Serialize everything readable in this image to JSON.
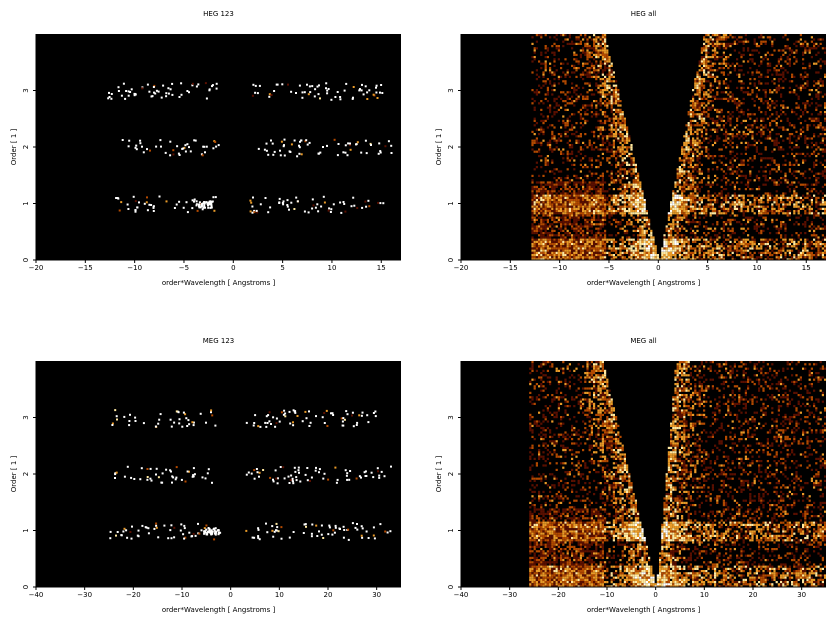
{
  "chart_data": [
    {
      "type": "heatmap",
      "title": "HEG 123",
      "xlabel": "order*Wavelength [ Angstroms ]",
      "ylabel": "Order [ 1 ]",
      "xlim": [
        -20,
        17
      ],
      "ylim": [
        0,
        4
      ],
      "xticks": [
        -20,
        -15,
        -10,
        -5,
        0,
        5,
        10,
        15
      ],
      "yticks": [
        0,
        1,
        2,
        3
      ],
      "colormap": [
        "#000000",
        "#5a0f00",
        "#b34a00",
        "#e89a28",
        "#ffe8a0",
        "#ffffff"
      ],
      "bands": [
        {
          "order": 1,
          "x_range": [
            -12,
            15.5
          ],
          "peak_x": [
            -3
          ],
          "density": "sparse"
        },
        {
          "order": 2,
          "x_range": [
            -12,
            16
          ],
          "density": "sparse"
        },
        {
          "order": 3,
          "x_range": [
            -13,
            15
          ],
          "density": "sparse"
        }
      ]
    },
    {
      "type": "heatmap",
      "title": "HEG all",
      "xlabel": "order*Wavelength [ Angstroms ]",
      "ylabel": "Order [ 1 ]",
      "xlim": [
        -20,
        17
      ],
      "ylim": [
        0,
        4
      ],
      "xticks": [
        -20,
        -15,
        -10,
        -5,
        0,
        5,
        10,
        15
      ],
      "yticks": [
        0,
        1,
        2,
        3
      ],
      "colormap": [
        "#000000",
        "#5a0f00",
        "#b34a00",
        "#e89a28",
        "#ffe8a0",
        "#ffffff"
      ],
      "data_x_range": [
        -13,
        17
      ],
      "cone_gap_x_at_top": [
        -5.5,
        4.5
      ],
      "bright_rows": [
        0.2,
        1.0
      ]
    },
    {
      "type": "heatmap",
      "title": "MEG 123",
      "xlabel": "order*Wavelength [ Angstroms ]",
      "ylabel": "Order [ 1 ]",
      "xlim": [
        -40,
        35
      ],
      "ylim": [
        0,
        4
      ],
      "xticks": [
        -40,
        -30,
        -20,
        -10,
        0,
        10,
        20,
        30
      ],
      "yticks": [
        0,
        1,
        2,
        3
      ],
      "colormap": [
        "#000000",
        "#5a0f00",
        "#b34a00",
        "#e89a28",
        "#ffe8a0",
        "#ffffff"
      ],
      "bands": [
        {
          "order": 1,
          "x_range": [
            -25,
            33
          ],
          "peak_x": [
            -4
          ],
          "density": "sparse"
        },
        {
          "order": 2,
          "x_range": [
            -24,
            33
          ],
          "density": "sparse"
        },
        {
          "order": 3,
          "x_range": [
            -25,
            30
          ],
          "density": "sparse"
        }
      ]
    },
    {
      "type": "heatmap",
      "title": "MEG all",
      "xlabel": "order*Wavelength [ Angstroms ]",
      "ylabel": "Order [ 1 ]",
      "xlim": [
        -40,
        35
      ],
      "ylim": [
        0,
        4
      ],
      "xticks": [
        -40,
        -30,
        -20,
        -10,
        0,
        10,
        20,
        30
      ],
      "yticks": [
        0,
        1,
        2,
        3
      ],
      "colormap": [
        "#000000",
        "#5a0f00",
        "#b34a00",
        "#e89a28",
        "#ffe8a0",
        "#ffffff"
      ],
      "data_x_range": [
        -26,
        35
      ],
      "cone_gap_x_at_top": [
        -11,
        4
      ],
      "bright_rows": [
        0.2,
        1.0
      ]
    }
  ]
}
